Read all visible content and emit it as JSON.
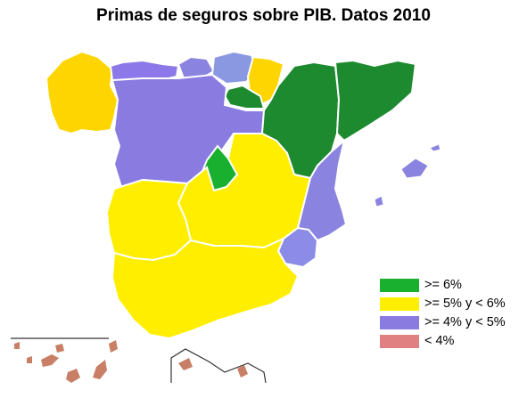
{
  "title": "Primas de seguros sobre PIB. Datos 2010",
  "colors": {
    "gte6": "#19b030",
    "gte6_dark": "#1d8a2f",
    "5to6": "#ffee00",
    "5to6_alt": "#ffd500",
    "4to5": "#8a7be0",
    "4to5_alt": "#8c8ce0",
    "lt4": "#e08080",
    "islands": "#c87f66",
    "border": "#ffffff"
  },
  "legend": [
    {
      "label": ">= 6%",
      "color": "#19b030"
    },
    {
      "label": ">= 5% y < 6%",
      "color": "#ffee00"
    },
    {
      "label": ">= 4% y < 5%",
      "color": "#8a7be0"
    },
    {
      "label": "< 4%",
      "color": "#e08080"
    }
  ]
}
